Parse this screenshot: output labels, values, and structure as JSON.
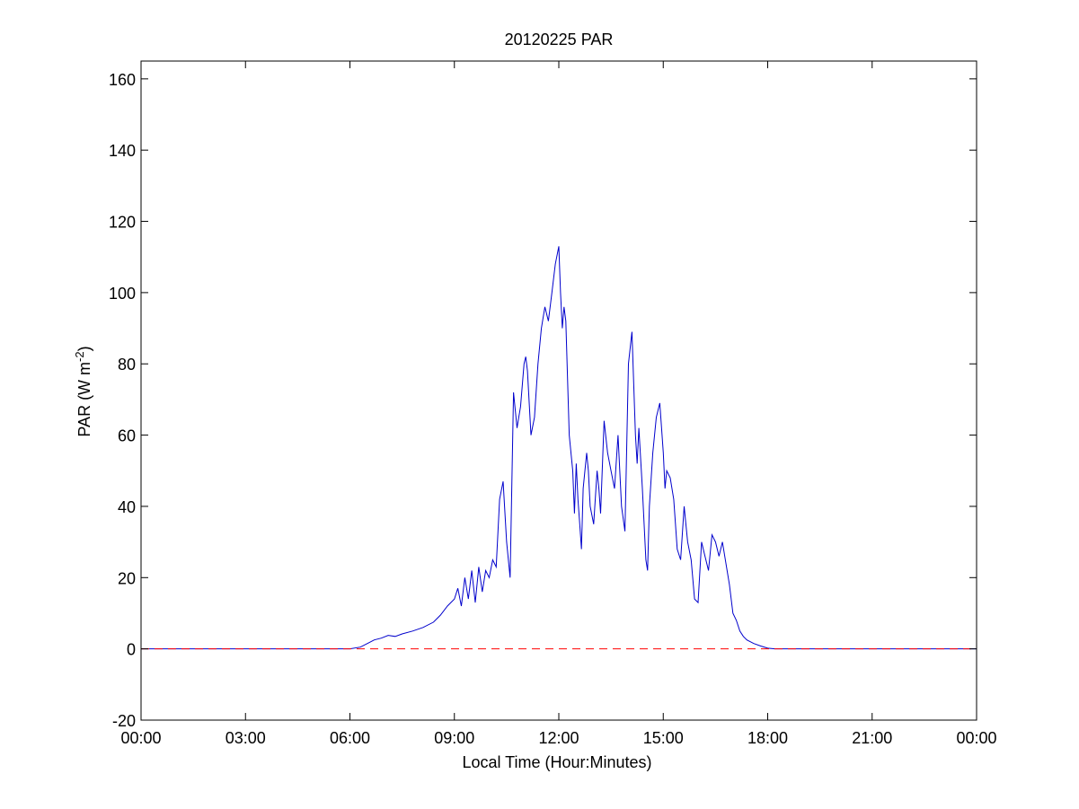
{
  "chart_data": {
    "type": "line",
    "title": "20120225 PAR",
    "xlabel": "Local Time (Hour:Minutes)",
    "ylabel": {
      "prefix": "PAR (W m",
      "superscript": "-2",
      "suffix": ")"
    },
    "xlim": [
      0,
      24
    ],
    "ylim": [
      -20,
      165
    ],
    "x_unit": "hours",
    "x_ticks": [
      {
        "value": 0,
        "label": "00:00"
      },
      {
        "value": 3,
        "label": "03:00"
      },
      {
        "value": 6,
        "label": "06:00"
      },
      {
        "value": 9,
        "label": "09:00"
      },
      {
        "value": 12,
        "label": "12:00"
      },
      {
        "value": 15,
        "label": "15:00"
      },
      {
        "value": 18,
        "label": "18:00"
      },
      {
        "value": 21,
        "label": "21:00"
      },
      {
        "value": 24,
        "label": "00:00"
      }
    ],
    "y_ticks": [
      {
        "value": -20,
        "label": "-20"
      },
      {
        "value": 0,
        "label": "0"
      },
      {
        "value": 20,
        "label": "20"
      },
      {
        "value": 40,
        "label": "40"
      },
      {
        "value": 60,
        "label": "60"
      },
      {
        "value": 80,
        "label": "80"
      },
      {
        "value": 100,
        "label": "100"
      },
      {
        "value": 120,
        "label": "120"
      },
      {
        "value": 140,
        "label": "140"
      },
      {
        "value": 160,
        "label": "160"
      }
    ],
    "grid": false,
    "series": [
      {
        "color": "#0000cc",
        "style": "solid",
        "x": [
          0,
          6.0,
          6.3,
          6.5,
          6.7,
          6.9,
          7.1,
          7.3,
          7.5,
          7.8,
          8.1,
          8.4,
          8.6,
          8.8,
          9.0,
          9.1,
          9.2,
          9.3,
          9.4,
          9.5,
          9.6,
          9.7,
          9.8,
          9.9,
          10.0,
          10.1,
          10.2,
          10.3,
          10.4,
          10.5,
          10.6,
          10.7,
          10.8,
          10.85,
          10.9,
          11.0,
          11.05,
          11.1,
          11.2,
          11.3,
          11.4,
          11.5,
          11.6,
          11.7,
          11.8,
          11.9,
          12.0,
          12.05,
          12.1,
          12.15,
          12.2,
          12.3,
          12.4,
          12.45,
          12.5,
          12.55,
          12.6,
          12.65,
          12.7,
          12.8,
          12.85,
          12.9,
          13.0,
          13.1,
          13.15,
          13.2,
          13.3,
          13.4,
          13.5,
          13.6,
          13.7,
          13.8,
          13.9,
          14.0,
          14.1,
          14.2,
          14.25,
          14.3,
          14.4,
          14.5,
          14.55,
          14.6,
          14.7,
          14.8,
          14.9,
          15.0,
          15.05,
          15.1,
          15.2,
          15.3,
          15.4,
          15.5,
          15.6,
          15.7,
          15.8,
          15.9,
          16.0,
          16.1,
          16.2,
          16.3,
          16.4,
          16.5,
          16.6,
          16.7,
          16.8,
          16.9,
          17.0,
          17.1,
          17.2,
          17.3,
          17.4,
          17.6,
          17.8,
          18.0,
          18.2,
          24
        ],
        "values": [
          0,
          0,
          0.5,
          1.5,
          2.5,
          3.0,
          3.8,
          3.5,
          4.2,
          5.0,
          6.0,
          7.5,
          9.5,
          12.0,
          14.0,
          17.0,
          12.0,
          20.0,
          14.0,
          22.0,
          13.0,
          23.0,
          16.0,
          22.0,
          20.0,
          25.0,
          23.0,
          42.0,
          47.0,
          30.0,
          20.0,
          72.0,
          62.0,
          65.0,
          68.0,
          80.0,
          82.0,
          78.0,
          60.0,
          65.0,
          80.0,
          90.0,
          96.0,
          92.0,
          100.0,
          108.0,
          113.0,
          100.0,
          90.0,
          96.0,
          92.0,
          60.0,
          50.0,
          38.0,
          52.0,
          42.0,
          35.0,
          28.0,
          45.0,
          55.0,
          50.0,
          40.0,
          35.0,
          50.0,
          45.0,
          38.0,
          64.0,
          55.0,
          50.0,
          45.0,
          60.0,
          40.0,
          33.0,
          80.0,
          89.0,
          60.0,
          52.0,
          62.0,
          45.0,
          25.0,
          22.0,
          40.0,
          55.0,
          65.0,
          69.0,
          55.0,
          45.0,
          50.0,
          48.0,
          42.0,
          28.0,
          25.0,
          40.0,
          30.0,
          25.0,
          14.0,
          13.0,
          30.0,
          26.0,
          22.0,
          32.0,
          30.0,
          26.0,
          30.0,
          24.0,
          18.0,
          10.0,
          8.0,
          5.0,
          3.5,
          2.5,
          1.5,
          0.8,
          0.2,
          0,
          0
        ]
      },
      {
        "color": "#ff0000",
        "style": "dashed",
        "x": [
          0,
          24
        ],
        "values": [
          0,
          0
        ]
      }
    ]
  }
}
